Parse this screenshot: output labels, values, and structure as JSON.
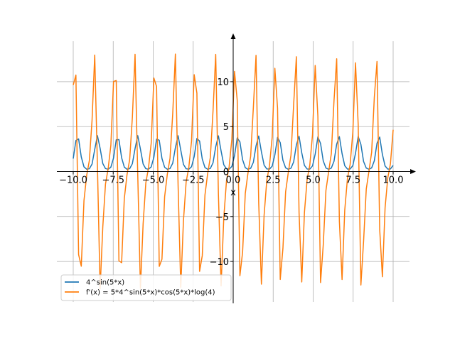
{
  "chart_data": {
    "type": "line",
    "xlabel": "x",
    "ylabel": "",
    "xlim": [
      -10.0,
      10.0
    ],
    "ylim": [
      -14.5,
      14.5
    ],
    "grid": true,
    "legend_position": "lower-left",
    "x_ticks": [
      {
        "value": -10.0,
        "label": "−10.0"
      },
      {
        "value": -7.5,
        "label": "−7.5"
      },
      {
        "value": -5.0,
        "label": "−5.0"
      },
      {
        "value": -2.5,
        "label": "−2.5"
      },
      {
        "value": 0.0,
        "label": "0.0"
      },
      {
        "value": 2.5,
        "label": "2.5"
      },
      {
        "value": 5.0,
        "label": "5.0"
      },
      {
        "value": 7.5,
        "label": "7.5"
      },
      {
        "value": 10.0,
        "label": "10.0"
      }
    ],
    "y_ticks": [
      {
        "value": -10,
        "label": "−10"
      },
      {
        "value": -5,
        "label": "−5"
      },
      {
        "value": 0,
        "label": "0"
      },
      {
        "value": 5,
        "label": "5"
      },
      {
        "value": 10,
        "label": "10"
      }
    ],
    "series": [
      {
        "name": "4^sin(5*x)",
        "color": "#1f77b4",
        "expression": "4^sin(5*x)",
        "samples": 120
      },
      {
        "name": "f'(x) = 5*4^sin(5*x)*cos(5*x)*log(4)",
        "color": "#ff7f0e",
        "expression": "5*4^sin(5*x)*cos(5*x)*log(4)",
        "samples": 120
      }
    ]
  }
}
